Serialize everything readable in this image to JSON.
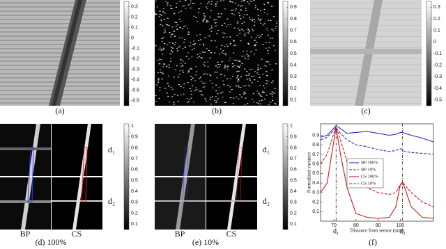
{
  "panels": [
    {
      "label": "(a)",
      "colorbar": {
        "lim": [
          -0.65,
          0.35
        ],
        "ticks": [
          0.3,
          0.2,
          0.1,
          0,
          -0.1,
          -0.2,
          -0.3,
          -0.4,
          -0.5,
          -0.6
        ]
      }
    },
    {
      "label": "(b)",
      "colorbar": {
        "lim": [
          0.05,
          0.95
        ],
        "ticks": [
          0.9,
          0.8,
          0.7,
          0.6,
          0.5,
          0.4,
          0.3,
          0.2,
          0.1
        ]
      }
    },
    {
      "label": "(c)",
      "colorbar": {
        "lim": [
          -0.55,
          0.35
        ],
        "ticks": [
          0.3,
          0.2,
          0.1,
          0,
          -0.1,
          -0.2,
          -0.3,
          -0.4,
          -0.5
        ]
      }
    },
    {
      "label": "(d) 100%",
      "columns": [
        "BP",
        "CS"
      ],
      "rows": [
        "d₁",
        "d₂"
      ],
      "colorbar": {
        "lim": [
          0.05,
          1.02
        ],
        "ticks": [
          1,
          0.9,
          0.8,
          0.7,
          0.6,
          0.5,
          0.4,
          0.3,
          0.2,
          0.1
        ]
      }
    },
    {
      "label": "(e) 10%",
      "columns": [
        "BP",
        "CS"
      ],
      "rows": [
        "d₁",
        "d₂"
      ],
      "colorbar": {
        "lim": [
          0.05,
          1.02
        ],
        "ticks": [
          1,
          0.9,
          0.8,
          0.7,
          0.6,
          0.5,
          0.4,
          0.3,
          0.2,
          0.1
        ]
      }
    }
  ],
  "chart_data": {
    "type": "line",
    "label": "(f)",
    "xlabel": "Distance from sensor (mm)",
    "ylabel": "Normalized variance",
    "x": [
      64,
      67,
      69,
      71,
      73,
      76,
      80,
      85,
      90,
      95,
      98,
      100,
      101,
      102,
      105,
      110,
      115
    ],
    "series": [
      {
        "name": "BP 100%",
        "color": "#1f2fbf",
        "dash": "solid",
        "values": [
          0.88,
          0.9,
          0.95,
          1.0,
          0.97,
          0.92,
          0.93,
          0.94,
          0.92,
          0.9,
          0.91,
          0.93,
          0.93,
          0.92,
          0.9,
          0.87,
          0.83
        ]
      },
      {
        "name": "BP 10%",
        "color": "#1f2fbf",
        "dash": "dashed",
        "values": [
          0.85,
          0.88,
          0.93,
          0.98,
          0.92,
          0.85,
          0.8,
          0.78,
          0.75,
          0.73,
          0.74,
          0.76,
          0.75,
          0.73,
          0.72,
          0.71,
          0.7
        ]
      },
      {
        "name": "CS 100%",
        "color": "#c41a1a",
        "dash": "solid",
        "values": [
          0.3,
          0.4,
          0.7,
          0.98,
          0.7,
          0.35,
          0.08,
          0.04,
          0.03,
          0.04,
          0.15,
          0.38,
          0.4,
          0.35,
          0.15,
          0.04,
          0.03
        ]
      },
      {
        "name": "CS 10%",
        "color": "#c41a1a",
        "dash": "dashed",
        "values": [
          0.6,
          0.7,
          0.85,
          0.99,
          0.85,
          0.62,
          0.45,
          0.35,
          0.3,
          0.28,
          0.3,
          0.38,
          0.41,
          0.38,
          0.3,
          0.2,
          0.15
        ]
      }
    ],
    "xlim": [
      64,
      115
    ],
    "ylim": [
      0,
      1.02
    ],
    "xticks": [
      70,
      80,
      90,
      100
    ],
    "yticks": [
      0.1,
      0.2,
      0.3,
      0.4,
      0.5,
      0.6,
      0.7,
      0.8,
      0.9
    ],
    "markers": [
      {
        "label": "d₁",
        "x": 71
      },
      {
        "label": "d₂",
        "x": 101
      }
    ],
    "legend": "center"
  }
}
